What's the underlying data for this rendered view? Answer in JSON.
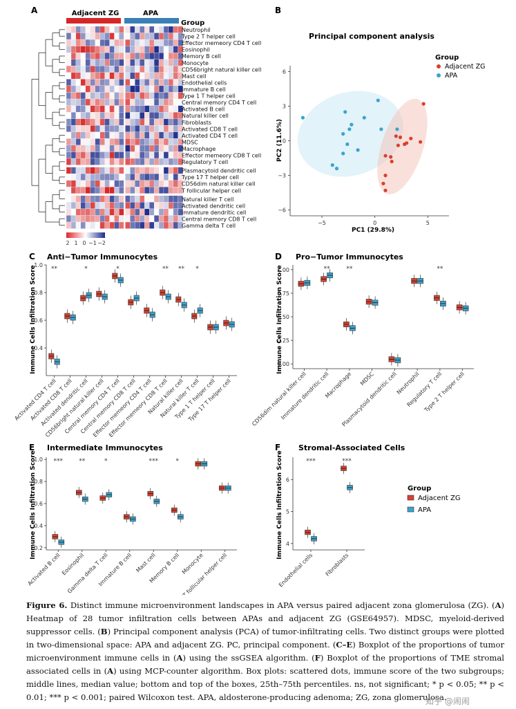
{
  "panels": {
    "A": {
      "letter": "A",
      "group_labels": [
        "Adjacent ZG",
        "APA"
      ],
      "legend_title": "Group",
      "colorbar_labels": [
        "2",
        "1",
        "0",
        "−1",
        "−2"
      ],
      "cells": [
        "Neutrophil",
        "Type 2 T helper cell",
        "Effector memeory CD4 T cell",
        "Eosinophil",
        "Memory B cell",
        "Monocyte",
        "CD56bright natural killer cell",
        "Mast cell",
        "Endothelial cells",
        "Immature  B cell",
        "Type 1 T helper cell",
        "Central memory CD4 T cell",
        "Activated B cell",
        "Natural killer cell",
        "Fibroblasts",
        "Activated CD8 T cell",
        "Activated CD4 T cell",
        "MDSC",
        "Macrophage",
        "Effector memeory CD8 T cell",
        "Regulatory T cell",
        "Plasmacytoid dendritic cell",
        "Type 17 T helper cell",
        "CD56dim natural killer cell",
        "T follicular helper cell",
        "Natural killer T cell",
        "Activated dendritic cell",
        "Immature dendritic cell",
        "Central memory CD8 T cell",
        "Gamma delta T cell"
      ]
    },
    "B": {
      "letter": "B",
      "title": "Principal component analysis",
      "legend_title": "Group",
      "legend": [
        "Adjacent ZG",
        "APA"
      ],
      "xlabel": "PC1 (29.8%)",
      "ylabel": "PC2 (11.6%)",
      "xticks": [
        "−5",
        "0",
        "5"
      ],
      "yticks": [
        "6",
        "3",
        "0",
        "−3",
        "−6"
      ]
    },
    "C": {
      "letter": "C",
      "title": "Anti−Tumor Immunocytes",
      "ylabel": "Immune Cells Infiltration Score",
      "yticks": [
        "1.0",
        "0.8",
        "0.6",
        "0.4"
      ],
      "categories": [
        "Activated CD4 T cell",
        "Activated CD8 T cell",
        "Activated dendritic cell",
        "CD56bright natural killer cell",
        "Central memory CD4 T cell",
        "Central memory CD8 T cell",
        "Effector memeory CD4 T cell",
        "Effector memeory CD8 T cell",
        "Natural killer cell",
        "Natural killer T cell",
        "Type 1 T helper cell",
        "Type 17 T helper cell"
      ],
      "sig": [
        "**",
        "",
        "*",
        "",
        "*",
        "",
        "",
        "**",
        "**",
        "*",
        "",
        ""
      ]
    },
    "D": {
      "letter": "D",
      "title": "Pro−Tumor Immunocytes",
      "ylabel": "Immune Cells Infiltration Score",
      "yticks": [
        "1.00",
        "0.75",
        "0.50",
        "0.25",
        "0.00"
      ],
      "categories": [
        "CD56dim natural killer cell",
        "Immature dendritic cell",
        "Macrophage",
        "MDSC",
        "Plasmacytoid dendritic cell",
        "Neutrophil",
        "Regulatory T cell",
        "Type 2 T helper cell"
      ],
      "sig": [
        "",
        "**",
        "**",
        "",
        "",
        "",
        "**",
        ""
      ]
    },
    "E": {
      "letter": "E",
      "title": "Intermediate Immunocytes",
      "ylabel": "Immune Cells Infiltration Score",
      "yticks": [
        "1.0",
        "0.8",
        "0.6",
        "0.4",
        "0.2"
      ],
      "categories": [
        "Activated B cell",
        "Eosinophil",
        "Gamma delta T cell",
        "Immature B cell",
        "Mast cell",
        "Memory B cell",
        "Monocyte",
        "T follicular helper cell"
      ],
      "sig": [
        "***",
        "**",
        "*",
        "",
        "***",
        "*",
        "",
        ""
      ]
    },
    "F": {
      "letter": "F",
      "title": "Stromal-Associated Cells",
      "ylabel": "Immune Cells Infiltration Score",
      "yticks": [
        "6",
        "5",
        "4"
      ],
      "categories": [
        "Endothelial cells",
        "Fibroblasts"
      ],
      "sig": [
        "***",
        "***"
      ],
      "legend_title": "Group",
      "legend": [
        "Adjacent ZG",
        "APA"
      ]
    }
  },
  "colors": {
    "adjacent": "#d8412f",
    "apa": "#3ba3cf",
    "heat_high": "#d7191c",
    "heat_low": "#1d2c8c"
  },
  "chart_data": [
    {
      "type": "scatter",
      "title": "Principal component analysis",
      "xlabel": "PC1 (29.8%)",
      "ylabel": "PC2 (11.6%)",
      "xlim": [
        -8,
        7
      ],
      "ylim": [
        -6.5,
        6.5
      ],
      "series": [
        {
          "name": "Adjacent ZG",
          "points": [
            [
              4.6,
              3.2
            ],
            [
              3.4,
              0.2
            ],
            [
              4.3,
              -0.1
            ],
            [
              2.0,
              0.4
            ],
            [
              2.4,
              0.3
            ],
            [
              2.8,
              -0.3
            ],
            [
              2.2,
              -0.4
            ],
            [
              3.0,
              -0.2
            ],
            [
              1.0,
              -1.3
            ],
            [
              1.5,
              -1.4
            ],
            [
              1.6,
              -1.8
            ],
            [
              1.0,
              -3.0
            ],
            [
              0.8,
              -3.7
            ],
            [
              1.0,
              -4.3
            ]
          ]
        },
        {
          "name": "APA",
          "points": [
            [
              -6.8,
              2.0
            ],
            [
              -2.8,
              2.5
            ],
            [
              -2.2,
              1.4
            ],
            [
              -1.0,
              2.0
            ],
            [
              0.3,
              3.5
            ],
            [
              -2.4,
              1.0
            ],
            [
              -3.0,
              0.6
            ],
            [
              0.6,
              1.0
            ],
            [
              2.1,
              1.0
            ],
            [
              -2.6,
              -0.3
            ],
            [
              -1.6,
              -0.8
            ],
            [
              -3.0,
              -1.1
            ],
            [
              -4.0,
              -2.1
            ],
            [
              -3.6,
              -2.4
            ]
          ]
        }
      ]
    },
    {
      "type": "box",
      "title": "Anti−Tumor Immunocytes",
      "ylabel": "Immune Cells Infiltration Score",
      "ylim": [
        0.2,
        1.0
      ],
      "categories": [
        "Activated CD4 T cell",
        "Activated CD8 T cell",
        "Activated dendritic cell",
        "CD56bright natural killer cell",
        "Central memory CD4 T cell",
        "Central memory CD8 T cell",
        "Effector memeory CD4 T cell",
        "Effector memeory CD8 T cell",
        "Natural killer cell",
        "Natural killer T cell",
        "Type 1 T helper cell",
        "Type 17 T helper cell"
      ],
      "series": [
        {
          "name": "Adjacent ZG",
          "median": [
            0.34,
            0.63,
            0.76,
            0.79,
            0.92,
            0.73,
            0.67,
            0.8,
            0.75,
            0.63,
            0.55,
            0.58
          ]
        },
        {
          "name": "APA",
          "median": [
            0.3,
            0.62,
            0.78,
            0.77,
            0.89,
            0.76,
            0.64,
            0.77,
            0.71,
            0.67,
            0.55,
            0.57
          ]
        }
      ]
    },
    {
      "type": "box",
      "title": "Pro−Tumor Immunocytes",
      "ylabel": "Immune Cells Infiltration Score",
      "ylim": [
        -0.05,
        1.05
      ],
      "categories": [
        "CD56dim natural killer cell",
        "Immature dendritic cell",
        "Macrophage",
        "MDSC",
        "Plasmacytoid dendritic cell",
        "Neutrophil",
        "Regulatory T cell",
        "Type 2 T helper cell"
      ],
      "series": [
        {
          "name": "Adjacent ZG",
          "median": [
            0.85,
            0.9,
            0.42,
            0.66,
            0.05,
            0.88,
            0.7,
            0.6
          ]
        },
        {
          "name": "APA",
          "median": [
            0.86,
            0.94,
            0.38,
            0.65,
            0.04,
            0.88,
            0.64,
            0.59
          ]
        }
      ]
    },
    {
      "type": "box",
      "title": "Intermediate Immunocytes",
      "ylabel": "Immune Cells Infiltration Score",
      "ylim": [
        0.18,
        1.02
      ],
      "categories": [
        "Activated B cell",
        "Eosinophil",
        "Gamma delta T cell",
        "Immature B cell",
        "Mast cell",
        "Memory B cell",
        "Monocyte",
        "T follicular helper cell"
      ],
      "series": [
        {
          "name": "Adjacent ZG",
          "median": [
            0.3,
            0.7,
            0.65,
            0.48,
            0.69,
            0.54,
            0.96,
            0.74
          ]
        },
        {
          "name": "APA",
          "median": [
            0.25,
            0.64,
            0.68,
            0.46,
            0.62,
            0.48,
            0.96,
            0.74
          ]
        }
      ]
    },
    {
      "type": "box",
      "title": "Stromal-Associated Cells",
      "ylabel": "Immune Cells Infiltration Score",
      "ylim": [
        3.8,
        6.7
      ],
      "categories": [
        "Endothelial cells",
        "Fibroblasts"
      ],
      "series": [
        {
          "name": "Adjacent ZG",
          "median": [
            4.35,
            6.35
          ]
        },
        {
          "name": "APA",
          "median": [
            4.15,
            5.75
          ]
        }
      ]
    }
  ],
  "caption": {
    "label": "Figure 6.",
    "text_parts": [
      "  Distinct immune microenvironment landscapes in APA versus paired adjacent zona glomerulosa (ZG). (",
      "A",
      ") Heatmap of 28 tumor infiltration cells between APAs and adjacent ZG (GSE64957).  MDSC, myeloid-derived suppressor cells.  (",
      "B",
      ") Principal component analysis (PCA) of tumor-infiltrating cells.  Two distinct groups were plotted in two-dimensional space: APA and adjacent ZG. PC, principal component. (",
      "C–E",
      ") Boxplot of the proportions of tumor microenvironment immune cells in (",
      "A",
      ") using the ssGSEA algorithm. (",
      "F",
      ") Boxplot of the proportions of TME stromal associated cells in (",
      "A",
      ") using MCP-counter algorithm. Box plots: scattered dots, immune score of the two subgroups; middle lines, median value; bottom and top of the boxes, 25th–75th percentiles.  ns, not significant; * p < 0.05; ** p < 0.01; *** p < 0.001; paired Wilcoxon test. APA, aldosterone-producing adenoma; ZG, zona glomerulosa."
    ]
  },
  "watermark": "知乎 @闹闹"
}
